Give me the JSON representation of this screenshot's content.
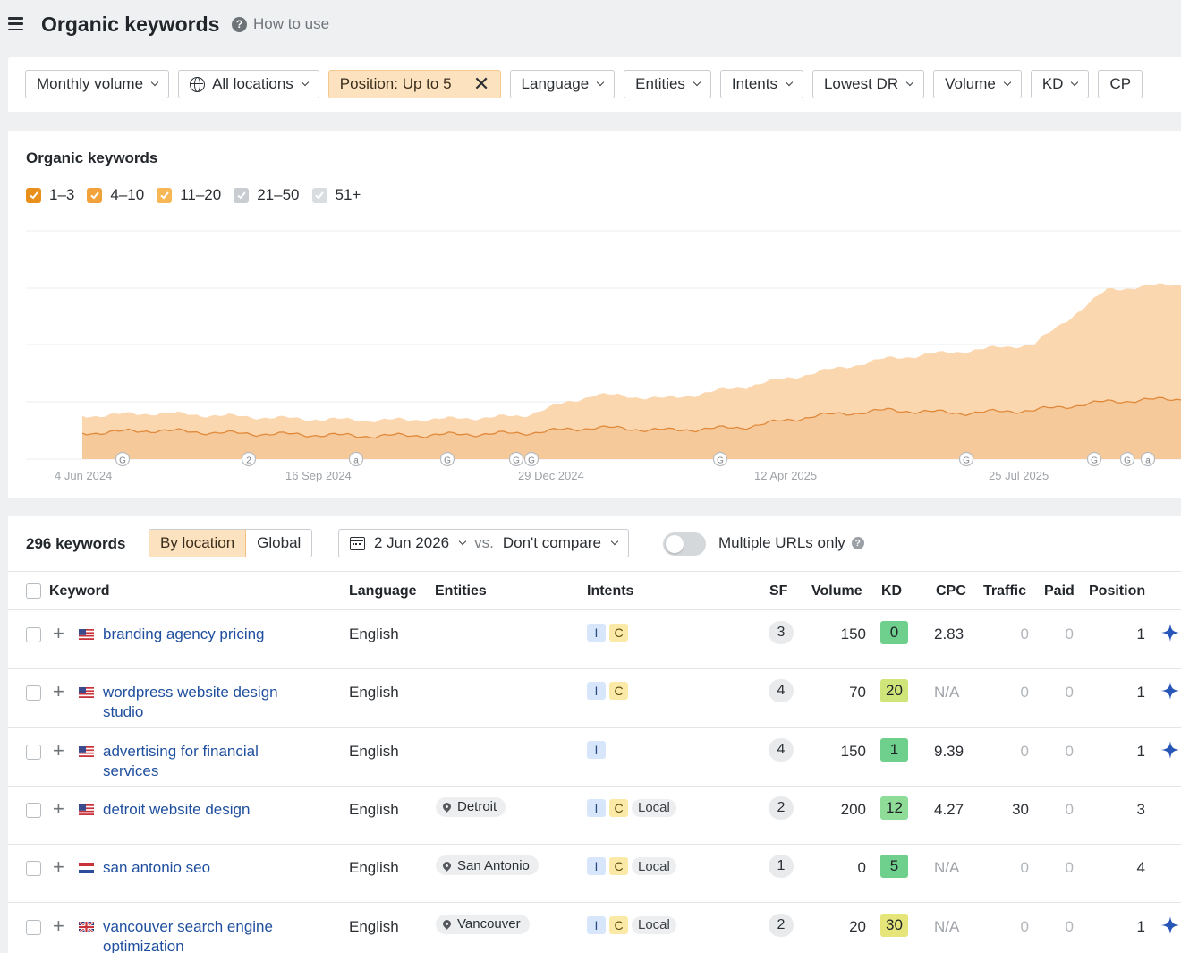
{
  "header": {
    "title": "Organic keywords",
    "how_to_use": "How to use"
  },
  "filters": [
    {
      "label": "Monthly volume"
    },
    {
      "label": "All locations",
      "icon": "globe-icon"
    },
    {
      "label": "Position: Up to 5",
      "active": true
    },
    {
      "label": "Language"
    },
    {
      "label": "Entities"
    },
    {
      "label": "Intents"
    },
    {
      "label": "Lowest DR"
    },
    {
      "label": "Volume"
    },
    {
      "label": "KD"
    },
    {
      "label": "CP"
    }
  ],
  "chart": {
    "title": "Organic keywords",
    "legend": [
      {
        "label": "1–3",
        "checked": true,
        "color": "#e8901b"
      },
      {
        "label": "4–10",
        "checked": true,
        "color": "#f2a23a"
      },
      {
        "label": "11–20",
        "checked": true,
        "color": "#f7b755"
      },
      {
        "label": "21–50",
        "checked": false,
        "color": "#c9ccd0"
      },
      {
        "label": "51+",
        "checked": false,
        "color": "#dadde0"
      }
    ],
    "x_ticks": [
      "4 Jun 2024",
      "16 Sep 2024",
      "29 Dec 2024",
      "12 Apr 2025",
      "25 Jul 2025"
    ],
    "markers": [
      "G",
      "2",
      "a",
      "G",
      "G",
      "G",
      "G",
      "G",
      "G",
      "G",
      "a"
    ]
  },
  "chart_data": {
    "type": "area",
    "title": "Organic keywords",
    "x": [
      "Jun 2024",
      "Jul 2024",
      "Aug 2024",
      "Sep 2024",
      "Oct 2024",
      "Nov 2024",
      "Dec 2024",
      "Jan 2025",
      "Feb 2025",
      "Mar 2025",
      "Apr 2025",
      "May 2025",
      "Jun 2025",
      "Jul 2025",
      "Aug 2025",
      "Sep 2025"
    ],
    "series": [
      {
        "name": "1–3",
        "values": [
          18,
          20,
          18,
          17,
          16,
          17,
          18,
          22,
          20,
          22,
          30,
          34,
          32,
          34,
          40,
          42
        ]
      },
      {
        "name": "4–10",
        "values": [
          30,
          32,
          30,
          28,
          27,
          28,
          30,
          45,
          42,
          50,
          60,
          70,
          75,
          80,
          118,
          122
        ]
      }
    ],
    "legend": "top-left",
    "grid": true
  },
  "table": {
    "count": "296 keywords",
    "by_location": "By location",
    "global": "Global",
    "date": "2 Jun 2026",
    "vs": "vs.",
    "compare": "Don't compare",
    "multiple_urls": "Multiple URLs only",
    "columns": {
      "keyword": "Keyword",
      "language": "Language",
      "entities": "Entities",
      "intents": "Intents",
      "sf": "SF",
      "volume": "Volume",
      "kd": "KD",
      "cpc": "CPC",
      "traffic": "Traffic",
      "paid": "Paid",
      "position": "Position"
    },
    "rows": [
      {
        "keyword": "branding agency pricing",
        "flag": "us",
        "language": "English",
        "entity": "",
        "intents": [
          "I",
          "C"
        ],
        "local": "",
        "sf": "3",
        "volume": "150",
        "kd": "0",
        "kd_color": "#6fcf8c",
        "cpc": "2.83",
        "traffic": "0",
        "paid": "0",
        "position": "1",
        "spark": true
      },
      {
        "keyword": "wordpress website design studio",
        "flag": "us",
        "language": "English",
        "entity": "",
        "intents": [
          "I",
          "C"
        ],
        "local": "",
        "sf": "4",
        "volume": "70",
        "kd": "20",
        "kd_color": "#cfe57a",
        "cpc": "N/A",
        "traffic": "0",
        "paid": "0",
        "position": "1",
        "spark": true
      },
      {
        "keyword": "advertising for financial services",
        "flag": "us",
        "language": "English",
        "entity": "",
        "intents": [
          "I"
        ],
        "local": "",
        "sf": "4",
        "volume": "150",
        "kd": "1",
        "kd_color": "#6fcf8c",
        "cpc": "9.39",
        "traffic": "0",
        "paid": "0",
        "position": "1",
        "spark": true
      },
      {
        "keyword": "detroit website design",
        "flag": "us",
        "language": "English",
        "entity": "Detroit",
        "intents": [
          "I",
          "C"
        ],
        "local": "Local",
        "sf": "2",
        "volume": "200",
        "kd": "12",
        "kd_color": "#8fdc98",
        "cpc": "4.27",
        "traffic": "30",
        "paid": "0",
        "position": "3",
        "spark": false
      },
      {
        "keyword": "san antonio seo",
        "flag": "nl",
        "language": "English",
        "entity": "San Antonio",
        "intents": [
          "I",
          "C"
        ],
        "local": "Local",
        "sf": "1",
        "volume": "0",
        "kd": "5",
        "kd_color": "#6fcf8c",
        "cpc": "N/A",
        "traffic": "0",
        "paid": "0",
        "position": "4",
        "spark": false
      },
      {
        "keyword": "vancouver search engine optimization",
        "flag": "uk",
        "language": "English",
        "entity": "Vancouver",
        "intents": [
          "I",
          "C"
        ],
        "local": "Local",
        "sf": "2",
        "volume": "20",
        "kd": "30",
        "kd_color": "#e6e57a",
        "cpc": "N/A",
        "traffic": "0",
        "paid": "0",
        "position": "1",
        "spark": true
      }
    ]
  }
}
